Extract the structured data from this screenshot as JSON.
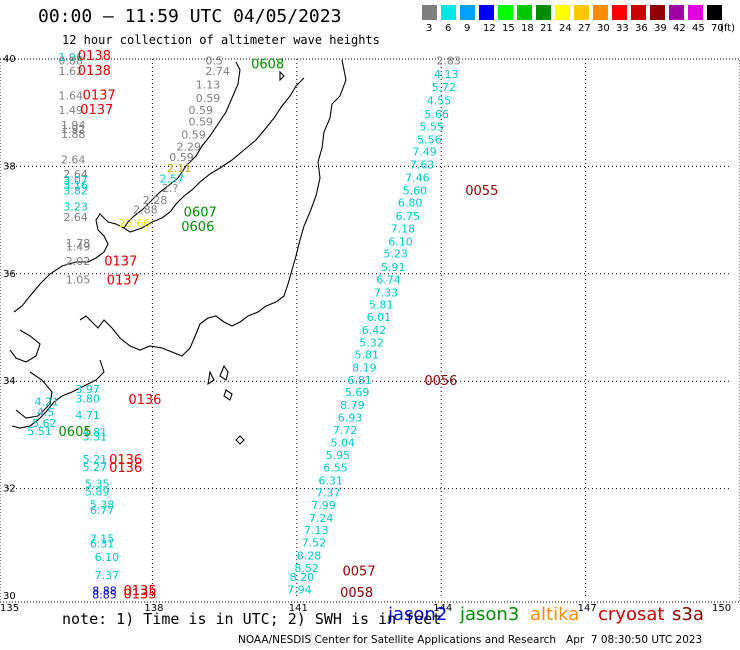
{
  "header": {
    "title": "00:00 – 11:59 UTC 04/05/2023",
    "subtitle": "12 hour collection of altimeter wave heights"
  },
  "legend": {
    "unit": "(ft)",
    "bins": [
      {
        "label": "3",
        "color": "#7f7f7f"
      },
      {
        "label": "6",
        "color": "#00e5e5"
      },
      {
        "label": "9",
        "color": "#00a0ff"
      },
      {
        "label": "12",
        "color": "#0000ff"
      },
      {
        "label": "15",
        "color": "#00ff00"
      },
      {
        "label": "18",
        "color": "#00c800"
      },
      {
        "label": "21",
        "color": "#008c00"
      },
      {
        "label": "24",
        "color": "#ffff00"
      },
      {
        "label": "27",
        "color": "#ffc800"
      },
      {
        "label": "30",
        "color": "#ff8c00"
      },
      {
        "label": "33",
        "color": "#ff0000"
      },
      {
        "label": "36",
        "color": "#c80000"
      },
      {
        "label": "39",
        "color": "#8c0000"
      },
      {
        "label": "42",
        "color": "#a000a0"
      },
      {
        "label": "45",
        "color": "#e000e0"
      },
      {
        "label": "70",
        "color": "#000000"
      }
    ]
  },
  "axes": {
    "lat_labels": [
      "40",
      "38",
      "36",
      "34",
      "32",
      "30"
    ],
    "lon_labels": [
      "135",
      "138",
      "141",
      "144",
      "147",
      "150"
    ]
  },
  "footer": {
    "note": "note: 1) Time is in UTC; 2) SWH is in feet",
    "credit": "NOAA/NESDIS Center for Satellite Applications and Research   Apr  7 08:30:50 UTC 2023",
    "satellites": [
      {
        "name": "jason2",
        "color": "#0000cc"
      },
      {
        "name": "jason3",
        "color": "#008c00"
      },
      {
        "name": "altika",
        "color": "#ff8c00"
      },
      {
        "name": "cryosat",
        "color": "#cc0000"
      },
      {
        "name": "s3a",
        "color": "#8c0000"
      }
    ]
  },
  "map_data": {
    "wave_values": [
      {
        "lon": 136.05,
        "lat": 39.96,
        "v": "1.96",
        "c": "#00c8c8"
      },
      {
        "lon": 136.05,
        "lat": 39.9,
        "v": "0.88",
        "c": "#7f7f7f"
      },
      {
        "lon": 136.05,
        "lat": 39.7,
        "v": "1.62",
        "c": "#7f7f7f"
      },
      {
        "lon": 136.05,
        "lat": 39.25,
        "v": "1.64",
        "c": "#7f7f7f"
      },
      {
        "lon": 136.05,
        "lat": 38.98,
        "v": "1.49",
        "c": "#7f7f7f"
      },
      {
        "lon": 136.1,
        "lat": 38.7,
        "v": "1.94",
        "c": "#7f7f7f"
      },
      {
        "lon": 136.1,
        "lat": 38.62,
        "v": "1.92",
        "c": "#7f7f7f"
      },
      {
        "lon": 136.1,
        "lat": 38.53,
        "v": "1.88",
        "c": "#7f7f7f"
      },
      {
        "lon": 136.1,
        "lat": 38.05,
        "v": "2.64",
        "c": "#7f7f7f"
      },
      {
        "lon": 136.15,
        "lat": 37.78,
        "v": "2.64",
        "c": "#7f7f7f"
      },
      {
        "lon": 136.15,
        "lat": 37.67,
        "v": "3.07",
        "c": "#00c8c8"
      },
      {
        "lon": 136.15,
        "lat": 37.58,
        "v": "3.16",
        "c": "#00c8c8"
      },
      {
        "lon": 136.15,
        "lat": 37.48,
        "v": "3.82",
        "c": "#00c8c8"
      },
      {
        "lon": 136.15,
        "lat": 37.18,
        "v": "3.23",
        "c": "#00c8c8"
      },
      {
        "lon": 136.15,
        "lat": 36.98,
        "v": "2.64",
        "c": "#7f7f7f"
      },
      {
        "lon": 136.2,
        "lat": 36.5,
        "v": "1.78",
        "c": "#7f7f7f"
      },
      {
        "lon": 136.2,
        "lat": 36.43,
        "v": "1.49",
        "c": "#7f7f7f"
      },
      {
        "lon": 136.2,
        "lat": 36.16,
        "v": "2.02",
        "c": "#7f7f7f"
      },
      {
        "lon": 136.2,
        "lat": 35.82,
        "v": "1.05",
        "c": "#7f7f7f"
      },
      {
        "lon": 136.4,
        "lat": 33.78,
        "v": "3.97",
        "c": "#00c8c8"
      },
      {
        "lon": 136.4,
        "lat": 33.6,
        "v": "3.80",
        "c": "#00c8c8"
      },
      {
        "lon": 135.55,
        "lat": 33.55,
        "v": "4.21",
        "c": "#00c8c8"
      },
      {
        "lon": 136.4,
        "lat": 33.3,
        "v": "4.71",
        "c": "#00c8c8"
      },
      {
        "lon": 135.6,
        "lat": 33.35,
        "v": "4.5",
        "c": "#00c8c8"
      },
      {
        "lon": 135.5,
        "lat": 33.15,
        "v": "5.62",
        "c": "#00c8c8"
      },
      {
        "lon": 135.4,
        "lat": 33.0,
        "v": "5.51",
        "c": "#00c8c8"
      },
      {
        "lon": 136.55,
        "lat": 32.98,
        "v": "4.81",
        "c": "#00c8c8"
      },
      {
        "lon": 136.55,
        "lat": 32.9,
        "v": "3.31",
        "c": "#00c8c8"
      },
      {
        "lon": 136.55,
        "lat": 32.48,
        "v": "5.21",
        "c": "#00c8c8"
      },
      {
        "lon": 136.55,
        "lat": 32.33,
        "v": "5.27",
        "c": "#00c8c8"
      },
      {
        "lon": 136.6,
        "lat": 32.02,
        "v": "5.35",
        "c": "#00c8c8"
      },
      {
        "lon": 136.6,
        "lat": 31.87,
        "v": "5.89",
        "c": "#00c8c8"
      },
      {
        "lon": 136.7,
        "lat": 31.63,
        "v": "5.38",
        "c": "#00c8c8"
      },
      {
        "lon": 136.7,
        "lat": 31.53,
        "v": "6.77",
        "c": "#00c8c8"
      },
      {
        "lon": 136.7,
        "lat": 31.0,
        "v": "7.15",
        "c": "#00c8c8"
      },
      {
        "lon": 136.7,
        "lat": 30.9,
        "v": "6.31",
        "c": "#00c8c8"
      },
      {
        "lon": 136.8,
        "lat": 30.65,
        "v": "6.10",
        "c": "#00c8c8"
      },
      {
        "lon": 136.8,
        "lat": 30.32,
        "v": "7.37",
        "c": "#00c8c8"
      },
      {
        "lon": 136.75,
        "lat": 30.03,
        "v": "8.88",
        "c": "#0000cc"
      },
      {
        "lon": 136.75,
        "lat": 29.95,
        "v": "8.85",
        "c": "#0000cc"
      },
      {
        "lon": 139.1,
        "lat": 39.9,
        "v": "0.5",
        "c": "#7f7f7f"
      },
      {
        "lon": 139.1,
        "lat": 39.7,
        "v": "2.74",
        "c": "#7f7f7f"
      },
      {
        "lon": 138.9,
        "lat": 39.45,
        "v": "1.13",
        "c": "#7f7f7f"
      },
      {
        "lon": 138.9,
        "lat": 39.2,
        "v": "0.59",
        "c": "#7f7f7f"
      },
      {
        "lon": 138.75,
        "lat": 38.98,
        "v": "0.59",
        "c": "#7f7f7f"
      },
      {
        "lon": 138.75,
        "lat": 38.76,
        "v": "0.59",
        "c": "#7f7f7f"
      },
      {
        "lon": 138.6,
        "lat": 38.52,
        "v": "0.59",
        "c": "#7f7f7f"
      },
      {
        "lon": 138.5,
        "lat": 38.3,
        "v": "2.29",
        "c": "#7f7f7f"
      },
      {
        "lon": 138.35,
        "lat": 38.1,
        "v": "0.59",
        "c": "#7f7f7f"
      },
      {
        "lon": 138.3,
        "lat": 37.9,
        "v": "2.11",
        "c": "#c8a000"
      },
      {
        "lon": 138.15,
        "lat": 37.7,
        "v": "2.57",
        "c": "#00c8c8"
      },
      {
        "lon": 138.2,
        "lat": 37.52,
        "v": "2.?",
        "c": "#7f7f7f"
      },
      {
        "lon": 137.8,
        "lat": 37.3,
        "v": "2.28",
        "c": "#7f7f7f"
      },
      {
        "lon": 137.6,
        "lat": 37.12,
        "v": "2.88",
        "c": "#7f7f7f"
      },
      {
        "lon": 137.3,
        "lat": 36.87,
        "v": "23.66",
        "c": "#e5e500"
      },
      {
        "lon": 143.9,
        "lat": 39.9,
        "v": "2.83",
        "c": "#7f7f7f"
      },
      {
        "lon": 143.85,
        "lat": 39.65,
        "v": "4.13",
        "c": "#00c8c8"
      },
      {
        "lon": 143.8,
        "lat": 39.4,
        "v": "5.72",
        "c": "#00c8c8"
      },
      {
        "lon": 143.7,
        "lat": 39.15,
        "v": "4.55",
        "c": "#00c8c8"
      },
      {
        "lon": 143.65,
        "lat": 38.9,
        "v": "5.66",
        "c": "#00c8c8"
      },
      {
        "lon": 143.55,
        "lat": 38.67,
        "v": "5.55",
        "c": "#00c8c8"
      },
      {
        "lon": 143.5,
        "lat": 38.43,
        "v": "5.56",
        "c": "#00c8c8"
      },
      {
        "lon": 143.4,
        "lat": 38.2,
        "v": "7.49",
        "c": "#00c8c8"
      },
      {
        "lon": 143.35,
        "lat": 37.96,
        "v": "7.63",
        "c": "#00c8c8"
      },
      {
        "lon": 143.25,
        "lat": 37.72,
        "v": "7.46",
        "c": "#00c8c8"
      },
      {
        "lon": 143.2,
        "lat": 37.48,
        "v": "5.60",
        "c": "#00c8c8"
      },
      {
        "lon": 143.1,
        "lat": 37.25,
        "v": "6.80",
        "c": "#00c8c8"
      },
      {
        "lon": 143.05,
        "lat": 37.0,
        "v": "6.75",
        "c": "#00c8c8"
      },
      {
        "lon": 142.95,
        "lat": 36.77,
        "v": "7.18",
        "c": "#00c8c8"
      },
      {
        "lon": 142.9,
        "lat": 36.53,
        "v": "6.10",
        "c": "#00c8c8"
      },
      {
        "lon": 142.8,
        "lat": 36.3,
        "v": "5.23",
        "c": "#00c8c8"
      },
      {
        "lon": 142.75,
        "lat": 36.05,
        "v": "5.91",
        "c": "#00c8c8"
      },
      {
        "lon": 142.65,
        "lat": 35.82,
        "v": "6.74",
        "c": "#00c8c8"
      },
      {
        "lon": 142.6,
        "lat": 35.58,
        "v": "7.33",
        "c": "#00c8c8"
      },
      {
        "lon": 142.5,
        "lat": 35.35,
        "v": "5.81",
        "c": "#00c8c8"
      },
      {
        "lon": 142.45,
        "lat": 35.12,
        "v": "6.01",
        "c": "#00c8c8"
      },
      {
        "lon": 142.35,
        "lat": 34.88,
        "v": "6.42",
        "c": "#00c8c8"
      },
      {
        "lon": 142.3,
        "lat": 34.65,
        "v": "5.32",
        "c": "#00c8c8"
      },
      {
        "lon": 142.2,
        "lat": 34.42,
        "v": "5.81",
        "c": "#00c8c8"
      },
      {
        "lon": 142.15,
        "lat": 34.18,
        "v": "8.19",
        "c": "#00c8c8"
      },
      {
        "lon": 142.05,
        "lat": 33.95,
        "v": "6.81",
        "c": "#00c8c8"
      },
      {
        "lon": 142.0,
        "lat": 33.72,
        "v": "5.69",
        "c": "#00c8c8"
      },
      {
        "lon": 141.9,
        "lat": 33.48,
        "v": "8.79",
        "c": "#00c8c8"
      },
      {
        "lon": 141.85,
        "lat": 33.25,
        "v": "6.93",
        "c": "#00c8c8"
      },
      {
        "lon": 141.75,
        "lat": 33.02,
        "v": "7.72",
        "c": "#00c8c8"
      },
      {
        "lon": 141.7,
        "lat": 32.78,
        "v": "5.04",
        "c": "#00c8c8"
      },
      {
        "lon": 141.6,
        "lat": 32.55,
        "v": "5.95",
        "c": "#00c8c8"
      },
      {
        "lon": 141.55,
        "lat": 32.32,
        "v": "6.55",
        "c": "#00c8c8"
      },
      {
        "lon": 141.45,
        "lat": 32.08,
        "v": "6.31",
        "c": "#00c8c8"
      },
      {
        "lon": 141.4,
        "lat": 31.85,
        "v": "7.37",
        "c": "#00c8c8"
      },
      {
        "lon": 141.3,
        "lat": 31.62,
        "v": "7.99",
        "c": "#00c8c8"
      },
      {
        "lon": 141.25,
        "lat": 31.38,
        "v": "7.24",
        "c": "#00c8c8"
      },
      {
        "lon": 141.15,
        "lat": 31.15,
        "v": "7.13",
        "c": "#00c8c8"
      },
      {
        "lon": 141.1,
        "lat": 30.92,
        "v": "7.52",
        "c": "#00c8c8"
      },
      {
        "lon": 141.0,
        "lat": 30.68,
        "v": "8.28",
        "c": "#00c8c8"
      },
      {
        "lon": 140.95,
        "lat": 30.45,
        "v": "8.52",
        "c": "#00c8c8"
      },
      {
        "lon": 140.85,
        "lat": 30.28,
        "v": "8.20",
        "c": "#00c8c8"
      },
      {
        "lon": 140.8,
        "lat": 30.05,
        "v": "7.94",
        "c": "#00c8c8"
      }
    ],
    "pass_times": [
      {
        "lon": 136.45,
        "lat": 39.98,
        "t": "0138",
        "c": "#e00000"
      },
      {
        "lon": 136.45,
        "lat": 39.7,
        "t": "0138",
        "c": "#e00000"
      },
      {
        "lon": 136.55,
        "lat": 39.25,
        "t": "0137",
        "c": "#e00000"
      },
      {
        "lon": 136.5,
        "lat": 38.98,
        "t": "0137",
        "c": "#e00000"
      },
      {
        "lon": 137.0,
        "lat": 36.15,
        "t": "0137",
        "c": "#e00000"
      },
      {
        "lon": 137.05,
        "lat": 35.8,
        "t": "0137",
        "c": "#e00000"
      },
      {
        "lon": 137.5,
        "lat": 33.58,
        "t": "0136",
        "c": "#e00000"
      },
      {
        "lon": 137.1,
        "lat": 32.46,
        "t": "0136",
        "c": "#e00000"
      },
      {
        "lon": 137.1,
        "lat": 32.31,
        "t": "0136",
        "c": "#e00000"
      },
      {
        "lon": 137.4,
        "lat": 30.02,
        "t": "0135",
        "c": "#e00000"
      },
      {
        "lon": 137.4,
        "lat": 29.95,
        "t": "0135",
        "c": "#e00000"
      },
      {
        "lon": 140.05,
        "lat": 39.82,
        "t": "0608",
        "c": "#008c00"
      },
      {
        "lon": 138.65,
        "lat": 37.07,
        "t": "0607",
        "c": "#008c00"
      },
      {
        "lon": 138.6,
        "lat": 36.8,
        "t": "0606",
        "c": "#008c00"
      },
      {
        "lon": 136.05,
        "lat": 32.98,
        "t": "0605",
        "c": "#008c00"
      },
      {
        "lon": 144.5,
        "lat": 37.47,
        "t": "0055",
        "c": "#8c0000"
      },
      {
        "lon": 143.65,
        "lat": 33.93,
        "t": "0056",
        "c": "#8c0000"
      },
      {
        "lon": 141.95,
        "lat": 30.38,
        "t": "0057",
        "c": "#8c0000"
      },
      {
        "lon": 141.9,
        "lat": 29.98,
        "t": "0058",
        "c": "#8c0000"
      }
    ]
  }
}
